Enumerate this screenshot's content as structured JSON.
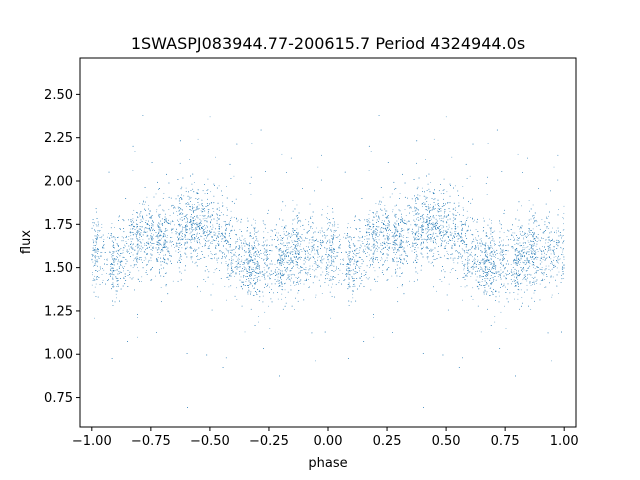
{
  "chart_data": {
    "type": "scatter",
    "title": "1SWASPJ083944.77-200615.7 Period 4324944.0s",
    "xlabel": "phase",
    "ylabel": "flux",
    "xlim": [
      -1.05,
      1.05
    ],
    "ylim": [
      0.58,
      2.71
    ],
    "xticks": [
      -1.0,
      -0.75,
      -0.5,
      -0.25,
      0.0,
      0.25,
      0.5,
      0.75,
      1.0
    ],
    "xtick_labels": [
      "−1.00",
      "−0.75",
      "−0.50",
      "−0.25",
      "0.00",
      "0.25",
      "0.50",
      "0.75",
      "1.00"
    ],
    "yticks": [
      0.75,
      1.0,
      1.25,
      1.5,
      1.75,
      2.0,
      2.25,
      2.5
    ],
    "ytick_labels": [
      "0.75",
      "1.00",
      "1.25",
      "1.50",
      "1.75",
      "2.00",
      "2.25",
      "2.50"
    ],
    "grid": false,
    "legend": "none",
    "marker_color": "#1f77b4",
    "series": [
      {
        "phase_range": [
          -1.0,
          1.0
        ],
        "repeat_period": 1.0,
        "mean_flux_profile": {
          "phase": [
            0.0,
            0.05,
            0.1,
            0.15,
            0.2,
            0.25,
            0.3,
            0.35,
            0.4,
            0.45,
            0.5,
            0.55,
            0.6,
            0.65,
            0.7,
            0.75,
            0.8,
            0.85,
            0.9,
            0.95,
            1.0
          ],
          "flux": [
            1.6,
            1.56,
            1.53,
            1.62,
            1.67,
            1.69,
            1.66,
            1.69,
            1.73,
            1.75,
            1.72,
            1.67,
            1.6,
            1.54,
            1.53,
            1.54,
            1.55,
            1.57,
            1.58,
            1.6,
            1.6
          ]
        },
        "flux_min": 0.68,
        "flux_max": 2.62
      }
    ]
  }
}
